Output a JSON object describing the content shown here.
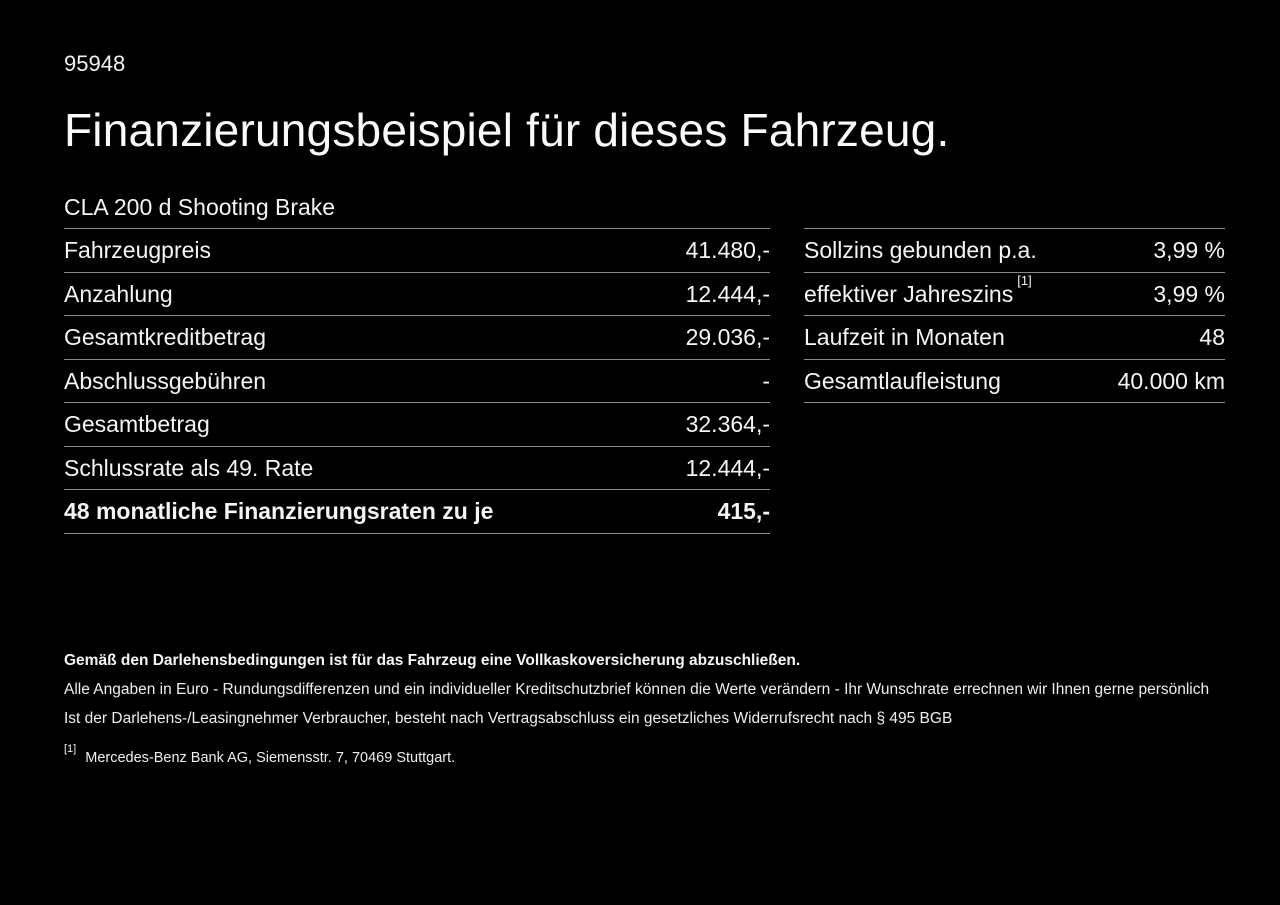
{
  "page": {
    "background_color": "#000000",
    "text_color": "#f5f5f5",
    "divider_color": "#8a8a8a",
    "ref_number": "95948",
    "title": "Finanzierungsbeispiel für dieses Fahrzeug.",
    "vehicle_model": "CLA 200 d Shooting Brake"
  },
  "finance_table": {
    "rows": [
      {
        "label": "Fahrzeugpreis",
        "value": "41.480,-"
      },
      {
        "label": "Anzahlung",
        "value": "12.444,-"
      },
      {
        "label": "Gesamtkreditbetrag",
        "value": "29.036,-"
      },
      {
        "label": "Abschlussgebühren",
        "value": "-"
      },
      {
        "label": "Gesamtbetrag",
        "value": "32.364,-"
      },
      {
        "label": "Schlussrate als 49. Rate",
        "value": "12.444,-"
      },
      {
        "label": "48 monatliche Finanzierungsraten zu je",
        "value": "415,-"
      }
    ]
  },
  "conditions_table": {
    "rows": [
      {
        "label": "Sollzins gebunden p.a.",
        "value": "3,99 %"
      },
      {
        "label": "effektiver Jahreszins",
        "footnote_marker": "[1]",
        "value": "3,99 %"
      },
      {
        "label": "Laufzeit in Monaten",
        "value": "48"
      },
      {
        "label": "Gesamtlaufleistung",
        "value": "40.000 km"
      }
    ]
  },
  "footer": {
    "insurance_note": "Gemäß den Darlehensbedingungen ist für das Fahrzeug eine Vollkaskoversicherung abzuschließen.",
    "rounding_note": "Alle Angaben in Euro - Rundungsdifferenzen und ein individueller Kreditschutzbrief können die Werte verändern - Ihr Wunschrate errechnen wir Ihnen gerne persönlich",
    "withdrawal_note": "Ist der Darlehens-/Leasingnehmer Verbraucher, besteht nach Vertragsabschluss ein gesetzliches Widerrufsrecht nach § 495 BGB",
    "footnote_marker": "[1]",
    "footnote_text": "Mercedes-Benz Bank AG, Siemensstr. 7, 70469 Stuttgart."
  }
}
